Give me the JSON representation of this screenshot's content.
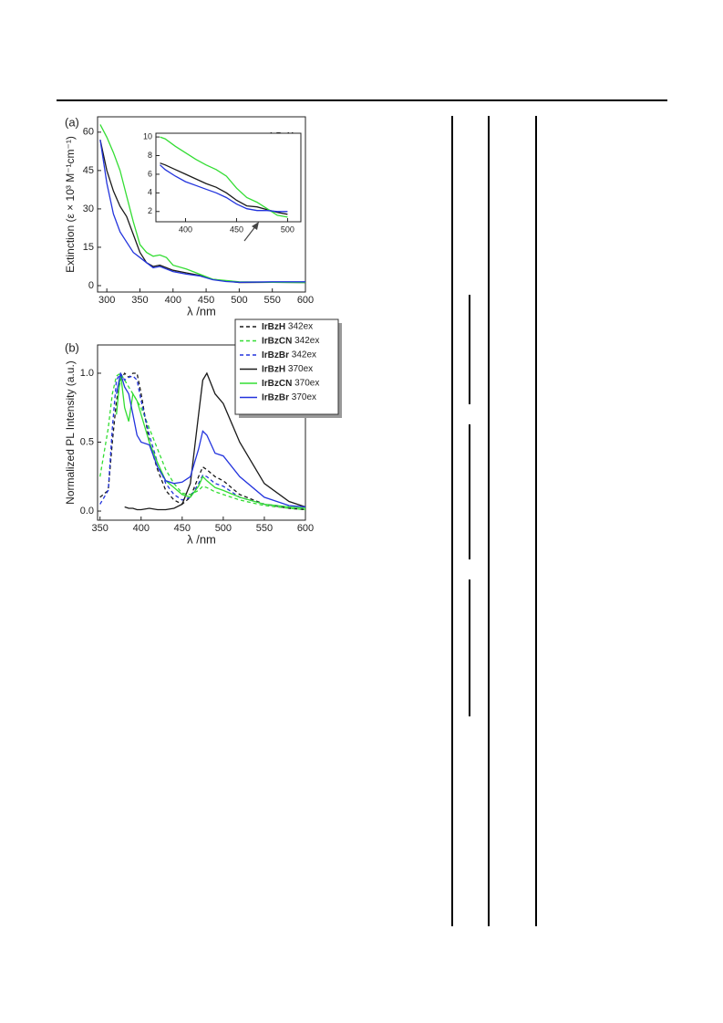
{
  "chart_data": [
    {
      "type": "line",
      "panel_label": "(a)",
      "x_label": "λ /nm",
      "y_label": "Extinction (ε × 10³ M⁻¹cm⁻¹)",
      "x": [
        290,
        300,
        310,
        320,
        330,
        340,
        350,
        360,
        370,
        380,
        390,
        400,
        420,
        440,
        460,
        480,
        500,
        550,
        600
      ],
      "series": [
        {
          "name": "IrBzH",
          "color": "#1a1a1a",
          "style": "solid",
          "values": [
            57,
            45,
            37,
            31,
            27,
            20,
            13,
            9,
            7.5,
            8,
            7,
            6,
            5,
            4,
            2.5,
            1.8,
            1.2,
            1.3,
            1.2
          ]
        },
        {
          "name": "IrBzCN",
          "color": "#33dd33",
          "style": "solid",
          "values": [
            63,
            58,
            52,
            45,
            35,
            25,
            16,
            13,
            11.5,
            12,
            11,
            8,
            6.5,
            4.5,
            2.5,
            2,
            1.5,
            1.3,
            1.2
          ]
        },
        {
          "name": "IrBzBr",
          "color": "#2233dd",
          "style": "solid",
          "values": [
            57,
            40,
            28,
            21,
            17,
            13,
            11,
            9,
            7,
            7.5,
            6.5,
            5.5,
            4.5,
            3.8,
            2.3,
            1.6,
            1.3,
            1.5,
            1.5
          ]
        }
      ],
      "xlim": [
        286,
        600
      ],
      "ylim": [
        -2.5,
        66
      ],
      "xticks": [
        300,
        350,
        400,
        450,
        500,
        550,
        600
      ],
      "yticks": [
        0,
        15,
        30,
        45,
        60
      ],
      "legend": "upper right"
    },
    {
      "type": "line",
      "x": [
        375,
        380,
        390,
        400,
        410,
        420,
        430,
        440,
        450,
        460,
        470,
        480,
        490,
        500
      ],
      "series": [
        {
          "color": "#1a1a1a",
          "style": "solid",
          "values": [
            7.2,
            7,
            6.5,
            6,
            5.5,
            5,
            4.6,
            4,
            3.2,
            2.6,
            2.5,
            2.2,
            1.9,
            1.7
          ]
        },
        {
          "color": "#33dd33",
          "style": "solid",
          "values": [
            10,
            9.8,
            9,
            8.3,
            7.6,
            7,
            6.5,
            5.8,
            4.5,
            3.5,
            3,
            2.3,
            1.6,
            1.4
          ]
        },
        {
          "color": "#2233dd",
          "style": "solid",
          "values": [
            7,
            6.5,
            5.8,
            5.2,
            4.8,
            4.4,
            4,
            3.5,
            2.8,
            2.3,
            2.1,
            2.1,
            2,
            2
          ]
        }
      ],
      "xlim": [
        371,
        513
      ],
      "ylim": [
        0.9,
        10.4
      ],
      "xticks": [
        400,
        450,
        500
      ],
      "yticks": [
        2,
        4,
        6,
        8,
        10
      ]
    },
    {
      "type": "line",
      "panel_label": "(b)",
      "x_label": "λ /nm",
      "y_label": "Normalized PL Intensity (a.u.)",
      "x": [
        350,
        360,
        365,
        370,
        375,
        380,
        385,
        390,
        395,
        400,
        410,
        420,
        430,
        440,
        450,
        460,
        470,
        475,
        480,
        490,
        500,
        520,
        550,
        580,
        600
      ],
      "series": [
        {
          "name": "IrBzH 342ex",
          "color": "#1a1a1a",
          "style": "dashed",
          "values": [
            0.1,
            0.15,
            0.5,
            0.8,
            0.95,
            1.0,
            0.97,
            1.0,
            1.0,
            0.85,
            0.5,
            0.3,
            0.15,
            0.08,
            0.05,
            0.1,
            0.25,
            0.32,
            0.3,
            0.25,
            0.22,
            0.12,
            0.05,
            0.02,
            0.01
          ]
        },
        {
          "name": "IrBzCN 342ex",
          "color": "#33dd33",
          "style": "dashed",
          "values": [
            0.25,
            0.6,
            0.85,
            0.98,
            1.0,
            0.95,
            0.9,
            0.85,
            0.8,
            0.75,
            0.6,
            0.45,
            0.3,
            0.2,
            0.13,
            0.12,
            0.15,
            0.18,
            0.17,
            0.14,
            0.12,
            0.08,
            0.04,
            0.02,
            0.01
          ]
        },
        {
          "name": "IrBzBr 342ex",
          "color": "#2233dd",
          "style": "dashed",
          "values": [
            0.05,
            0.15,
            0.6,
            0.95,
            1.0,
            0.95,
            0.97,
            0.98,
            0.95,
            0.8,
            0.55,
            0.35,
            0.2,
            0.12,
            0.08,
            0.1,
            0.2,
            0.26,
            0.25,
            0.2,
            0.18,
            0.1,
            0.05,
            0.03,
            0.02
          ]
        },
        {
          "name": "IrBzH 370ex",
          "color": "#1a1a1a",
          "style": "solid",
          "values": [
            null,
            null,
            null,
            null,
            null,
            0.03,
            0.02,
            0.02,
            0.01,
            0.01,
            0.02,
            0.01,
            0.01,
            0.02,
            0.05,
            0.2,
            0.7,
            0.95,
            1.0,
            0.85,
            0.78,
            0.5,
            0.2,
            0.07,
            0.03
          ]
        },
        {
          "name": "IrBzCN 370ex",
          "color": "#33dd33",
          "style": "solid",
          "values": [
            null,
            null,
            null,
            0.7,
            1.0,
            0.75,
            0.65,
            0.85,
            0.8,
            0.7,
            0.5,
            0.35,
            0.22,
            0.17,
            0.12,
            0.1,
            0.18,
            0.25,
            0.22,
            0.17,
            0.15,
            0.1,
            0.05,
            0.03,
            0.02
          ]
        },
        {
          "name": "IrBzBr 370ex",
          "color": "#2233dd",
          "style": "solid",
          "values": [
            null,
            null,
            null,
            0.85,
            1.0,
            0.9,
            0.85,
            0.7,
            0.55,
            0.5,
            0.48,
            0.32,
            0.22,
            0.2,
            0.21,
            0.25,
            0.45,
            0.58,
            0.55,
            0.42,
            0.4,
            0.25,
            0.1,
            0.04,
            0.03
          ]
        }
      ],
      "xlim": [
        347,
        600
      ],
      "ylim": [
        -0.066,
        1.205
      ],
      "xticks": [
        350,
        400,
        450,
        500,
        550,
        600
      ],
      "yticks": [
        {
          "value": 0,
          "label": "0.0"
        },
        0.5,
        {
          "value": 1,
          "label": "1.0"
        }
      ],
      "legend": "upper right"
    }
  ]
}
